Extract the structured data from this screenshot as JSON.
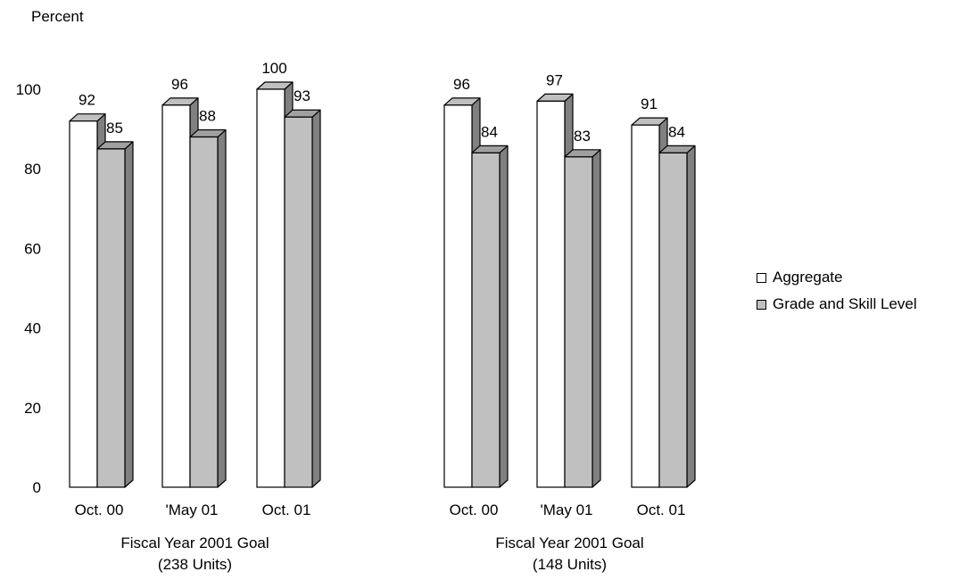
{
  "chart_data": {
    "type": "bar",
    "ylabel": "Percent",
    "ylim": [
      0,
      100
    ],
    "yticks": [
      0,
      20,
      40,
      60,
      80,
      100
    ],
    "legend_position": "right",
    "groups": [
      {
        "title": "Fiscal Year 2001 Goal",
        "subtitle": "(238 Units)",
        "categories": [
          "Oct. 00",
          "'May 01",
          "Oct. 01"
        ],
        "series": [
          {
            "name": "Aggregate",
            "values": [
              92,
              96,
              100
            ]
          },
          {
            "name": "Grade and Skill Level",
            "values": [
              85,
              88,
              93
            ]
          }
        ]
      },
      {
        "title": "Fiscal Year 2001 Goal",
        "subtitle": "(148 Units)",
        "categories": [
          "Oct. 00",
          "'May 01",
          "Oct. 01"
        ],
        "series": [
          {
            "name": "Aggregate",
            "values": [
              96,
              97,
              91
            ]
          },
          {
            "name": "Grade and Skill Level",
            "values": [
              84,
              83,
              84
            ]
          }
        ]
      }
    ],
    "colors": {
      "Aggregate": {
        "front": "#ffffff",
        "top": "#c0c0c0",
        "side": "#808080"
      },
      "Grade and Skill Level": {
        "front": "#c0c0c0",
        "top": "#a0a0a0",
        "side": "#808080"
      }
    }
  }
}
